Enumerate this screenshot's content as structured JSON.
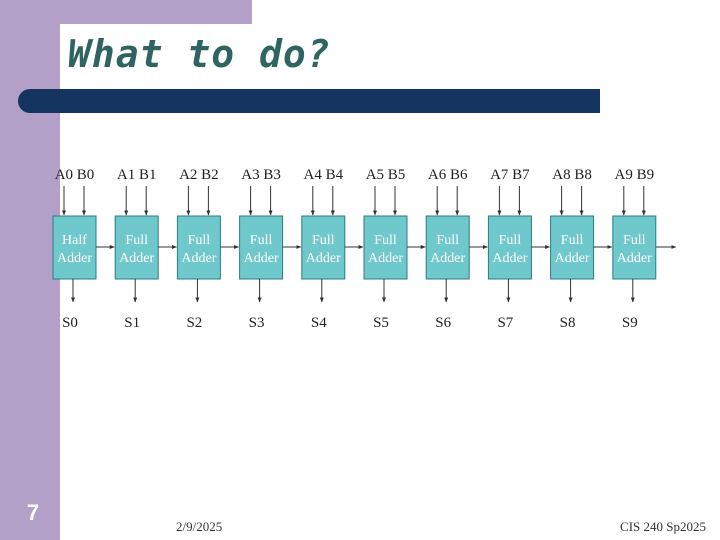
{
  "slide": {
    "title": "What to do?",
    "number": "7",
    "date": "2/9/2025",
    "course": "CIS 240 Sp2025"
  },
  "colors": {
    "accent_purple": "#b2a0c9",
    "title_teal": "#2f6461",
    "bar_navy": "#13355f",
    "adder_fill": "#6fc8cc",
    "line": "#333333"
  },
  "adders": [
    {
      "inputs": "A0 B0",
      "line1": "Half",
      "line2": "Adder",
      "output": "S0"
    },
    {
      "inputs": "A1 B1",
      "line1": "Full",
      "line2": "Adder",
      "output": "S1"
    },
    {
      "inputs": "A2 B2",
      "line1": "Full",
      "line2": "Adder",
      "output": "S2"
    },
    {
      "inputs": "A3 B3",
      "line1": "Full",
      "line2": "Adder",
      "output": "S3"
    },
    {
      "inputs": "A4 B4",
      "line1": "Full",
      "line2": "Adder",
      "output": "S4"
    },
    {
      "inputs": "A5 B5",
      "line1": "Full",
      "line2": "Adder",
      "output": "S5"
    },
    {
      "inputs": "A6 B6",
      "line1": "Full",
      "line2": "Adder",
      "output": "S6"
    },
    {
      "inputs": "A7 B7",
      "line1": "Full",
      "line2": "Adder",
      "output": "S7"
    },
    {
      "inputs": "A8 B8",
      "line1": "Full",
      "line2": "Adder",
      "output": "S8"
    },
    {
      "inputs": "A9 B9",
      "line1": "Full",
      "line2": "Adder",
      "output": "S9"
    }
  ]
}
